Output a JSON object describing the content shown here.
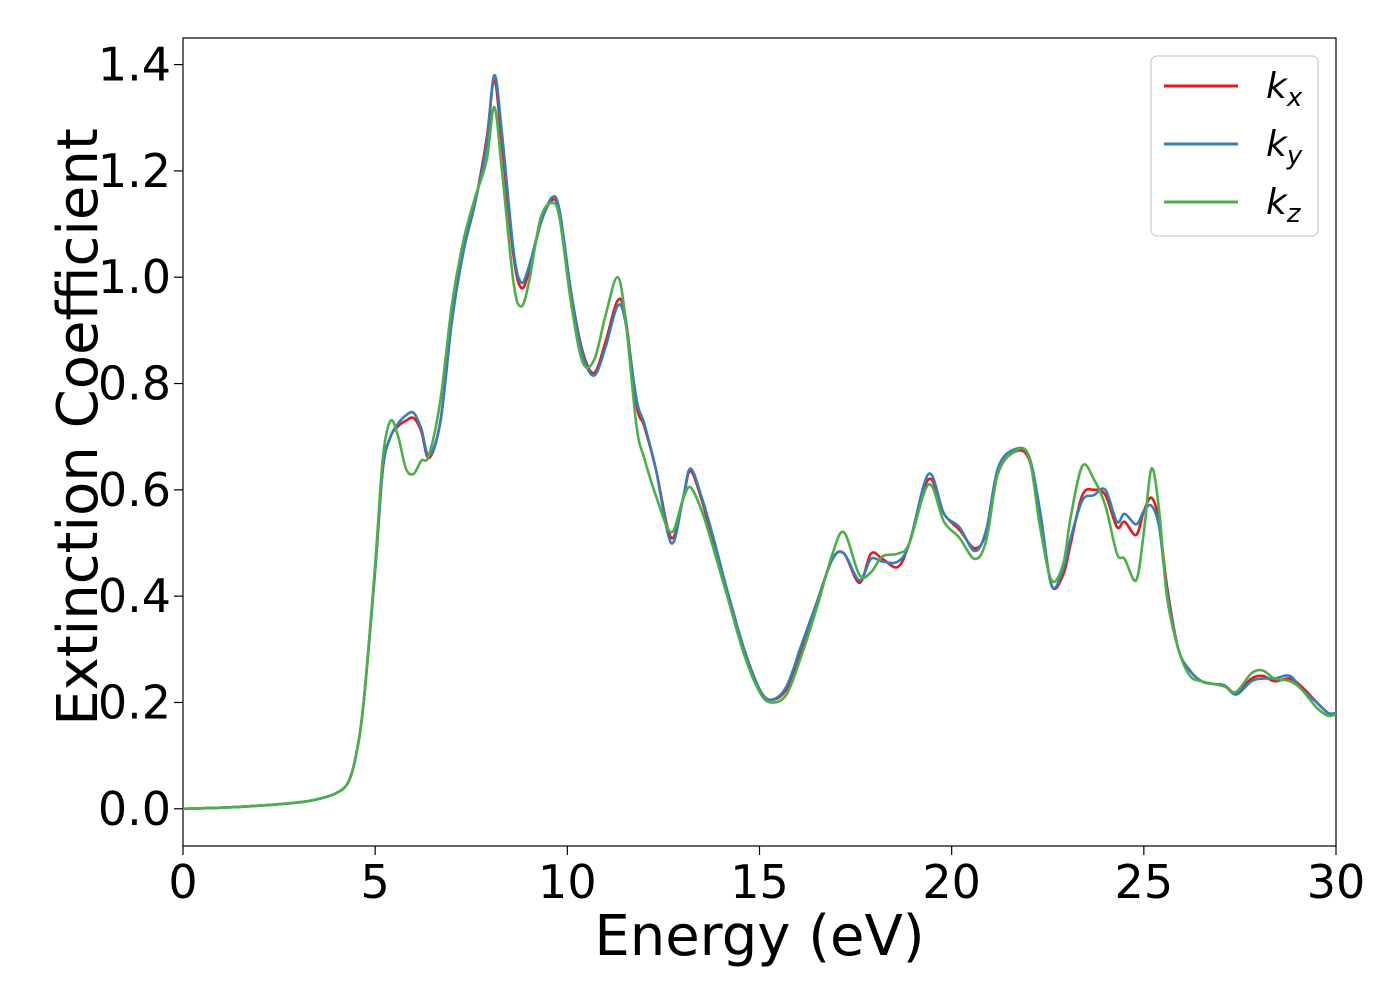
{
  "chart_data": {
    "type": "line",
    "title": "",
    "xlabel": "Energy (eV)",
    "ylabel": "Extinction Coefficient",
    "xlim": [
      0,
      30
    ],
    "ylim": [
      -0.07,
      1.45
    ],
    "xticks": [
      0,
      5,
      10,
      15,
      20,
      25,
      30
    ],
    "xtick_labels": [
      "0",
      "5",
      "10",
      "15",
      "20",
      "25",
      "30"
    ],
    "yticks": [
      0.0,
      0.2,
      0.4,
      0.6,
      0.8,
      1.0,
      1.2,
      1.4
    ],
    "ytick_labels": [
      "0.0",
      "0.2",
      "0.4",
      "0.6",
      "0.8",
      "1.0",
      "1.2",
      "1.4"
    ],
    "grid": false,
    "legend_position": "top-right",
    "series": [
      {
        "name": "k",
        "subscript": "x",
        "color": "#e41a1c",
        "x": [
          0,
          1,
          2,
          3,
          3.5,
          4,
          4.3,
          4.5,
          4.7,
          5,
          5.2,
          5.4,
          5.6,
          5.8,
          6.0,
          6.2,
          6.4,
          6.7,
          7.0,
          7.3,
          7.6,
          7.9,
          8.1,
          8.3,
          8.6,
          8.8,
          9.0,
          9.3,
          9.6,
          9.8,
          10.1,
          10.4,
          10.7,
          11.0,
          11.3,
          11.5,
          11.8,
          12.0,
          12.3,
          12.7,
          13.0,
          13.2,
          13.5,
          13.8,
          14.2,
          14.6,
          15.0,
          15.3,
          15.7,
          16.1,
          16.5,
          16.9,
          17.2,
          17.6,
          17.9,
          18.2,
          18.6,
          18.9,
          19.4,
          19.8,
          20.2,
          20.6,
          20.9,
          21.2,
          21.6,
          22.0,
          22.3,
          22.6,
          22.9,
          23.1,
          23.4,
          23.7,
          24.0,
          24.3,
          24.5,
          24.8,
          25.0,
          25.2,
          25.4,
          25.6,
          25.9,
          26.2,
          26.5,
          26.8,
          27.1,
          27.4,
          27.8,
          28.1,
          28.4,
          28.8,
          29.1,
          29.5,
          29.8,
          30.0
        ],
        "y": [
          0.0,
          0.002,
          0.006,
          0.012,
          0.018,
          0.03,
          0.05,
          0.1,
          0.2,
          0.45,
          0.64,
          0.7,
          0.72,
          0.73,
          0.735,
          0.71,
          0.66,
          0.73,
          0.92,
          1.05,
          1.14,
          1.26,
          1.37,
          1.25,
          1.04,
          0.98,
          1.01,
          1.1,
          1.145,
          1.12,
          0.97,
          0.86,
          0.82,
          0.88,
          0.955,
          0.93,
          0.76,
          0.72,
          0.64,
          0.51,
          0.58,
          0.635,
          0.58,
          0.5,
          0.4,
          0.3,
          0.225,
          0.205,
          0.225,
          0.3,
          0.39,
          0.47,
          0.48,
          0.425,
          0.48,
          0.47,
          0.455,
          0.5,
          0.62,
          0.555,
          0.525,
          0.49,
          0.52,
          0.63,
          0.67,
          0.66,
          0.55,
          0.42,
          0.44,
          0.5,
          0.59,
          0.6,
          0.59,
          0.53,
          0.54,
          0.515,
          0.56,
          0.585,
          0.54,
          0.42,
          0.3,
          0.26,
          0.24,
          0.235,
          0.232,
          0.218,
          0.245,
          0.25,
          0.24,
          0.245,
          0.23,
          0.2,
          0.18,
          0.18
        ]
      },
      {
        "name": "k",
        "subscript": "y",
        "color": "#377eb8",
        "x": [
          0,
          1,
          2,
          3,
          3.5,
          4,
          4.3,
          4.5,
          4.7,
          5,
          5.2,
          5.4,
          5.6,
          5.8,
          6.0,
          6.2,
          6.4,
          6.7,
          7.0,
          7.3,
          7.6,
          7.9,
          8.1,
          8.3,
          8.6,
          8.8,
          9.0,
          9.3,
          9.6,
          9.8,
          10.1,
          10.4,
          10.7,
          11.0,
          11.3,
          11.5,
          11.8,
          12.0,
          12.3,
          12.7,
          13.0,
          13.2,
          13.5,
          13.8,
          14.2,
          14.6,
          15.0,
          15.3,
          15.7,
          16.1,
          16.5,
          16.9,
          17.2,
          17.6,
          17.9,
          18.2,
          18.6,
          18.9,
          19.4,
          19.8,
          20.2,
          20.6,
          20.9,
          21.2,
          21.6,
          22.0,
          22.3,
          22.6,
          22.9,
          23.1,
          23.4,
          23.7,
          24.0,
          24.3,
          24.5,
          24.8,
          25.0,
          25.2,
          25.4,
          25.6,
          25.9,
          26.2,
          26.5,
          26.8,
          27.1,
          27.4,
          27.8,
          28.1,
          28.4,
          28.8,
          29.1,
          29.5,
          29.8,
          30.0
        ],
        "y": [
          0.0,
          0.002,
          0.006,
          0.012,
          0.018,
          0.03,
          0.05,
          0.1,
          0.2,
          0.45,
          0.64,
          0.7,
          0.725,
          0.74,
          0.745,
          0.715,
          0.665,
          0.73,
          0.92,
          1.05,
          1.14,
          1.25,
          1.38,
          1.27,
          1.05,
          0.99,
          1.02,
          1.1,
          1.15,
          1.125,
          0.97,
          0.855,
          0.815,
          0.87,
          0.945,
          0.92,
          0.77,
          0.725,
          0.64,
          0.5,
          0.58,
          0.64,
          0.585,
          0.51,
          0.4,
          0.3,
          0.225,
          0.205,
          0.23,
          0.31,
          0.39,
          0.47,
          0.48,
          0.43,
          0.47,
          0.465,
          0.465,
          0.5,
          0.63,
          0.555,
          0.53,
          0.485,
          0.525,
          0.64,
          0.675,
          0.665,
          0.56,
          0.42,
          0.45,
          0.51,
          0.58,
          0.59,
          0.6,
          0.54,
          0.555,
          0.535,
          0.56,
          0.57,
          0.53,
          0.41,
          0.3,
          0.26,
          0.24,
          0.235,
          0.232,
          0.215,
          0.24,
          0.245,
          0.245,
          0.25,
          0.225,
          0.2,
          0.18,
          0.18
        ]
      },
      {
        "name": "k",
        "subscript": "z",
        "color": "#4daf4a",
        "x": [
          0,
          1,
          2,
          3,
          3.5,
          4,
          4.3,
          4.5,
          4.7,
          5,
          5.2,
          5.4,
          5.6,
          5.8,
          6.0,
          6.2,
          6.4,
          6.7,
          7.0,
          7.3,
          7.6,
          7.9,
          8.1,
          8.3,
          8.6,
          8.8,
          9.0,
          9.3,
          9.6,
          9.8,
          10.1,
          10.4,
          10.7,
          11.0,
          11.3,
          11.5,
          11.8,
          12.0,
          12.3,
          12.7,
          13.0,
          13.2,
          13.5,
          13.8,
          14.2,
          14.6,
          15.0,
          15.3,
          15.7,
          16.1,
          16.5,
          16.9,
          17.2,
          17.6,
          17.9,
          18.2,
          18.6,
          18.9,
          19.4,
          19.8,
          20.2,
          20.6,
          20.9,
          21.2,
          21.6,
          22.0,
          22.3,
          22.6,
          22.9,
          23.1,
          23.4,
          23.7,
          24.0,
          24.3,
          24.5,
          24.8,
          25.0,
          25.2,
          25.4,
          25.6,
          25.9,
          26.2,
          26.5,
          26.8,
          27.1,
          27.4,
          27.8,
          28.1,
          28.4,
          28.8,
          29.1,
          29.5,
          29.8,
          30.0
        ],
        "y": [
          0.0,
          0.002,
          0.006,
          0.012,
          0.018,
          0.03,
          0.05,
          0.1,
          0.2,
          0.46,
          0.66,
          0.73,
          0.7,
          0.64,
          0.63,
          0.655,
          0.665,
          0.77,
          0.95,
          1.07,
          1.15,
          1.22,
          1.32,
          1.2,
          0.99,
          0.945,
          0.99,
          1.11,
          1.14,
          1.11,
          0.95,
          0.84,
          0.845,
          0.93,
          1.0,
          0.93,
          0.72,
          0.66,
          0.59,
          0.52,
          0.58,
          0.605,
          0.56,
          0.49,
          0.39,
          0.29,
          0.22,
          0.2,
          0.215,
          0.29,
          0.38,
          0.48,
          0.52,
          0.44,
          0.445,
          0.475,
          0.48,
          0.5,
          0.61,
          0.54,
          0.51,
          0.47,
          0.505,
          0.63,
          0.67,
          0.665,
          0.53,
          0.43,
          0.46,
          0.55,
          0.645,
          0.62,
          0.57,
          0.48,
          0.47,
          0.43,
          0.52,
          0.64,
          0.56,
          0.4,
          0.3,
          0.25,
          0.24,
          0.235,
          0.23,
          0.22,
          0.255,
          0.26,
          0.245,
          0.24,
          0.225,
          0.19,
          0.175,
          0.178
        ]
      }
    ]
  }
}
